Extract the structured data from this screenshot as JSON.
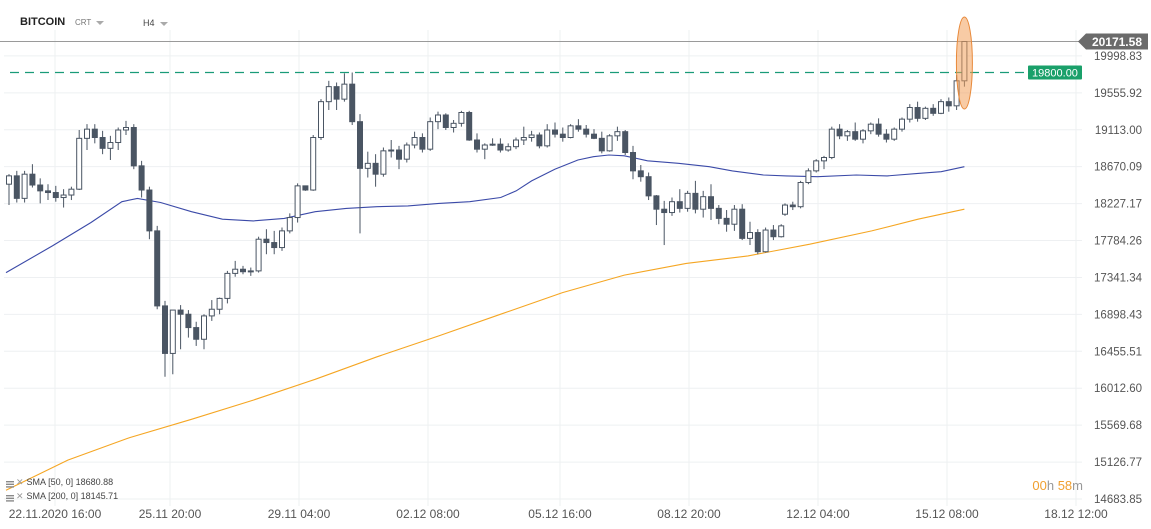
{
  "header": {
    "symbol": "BITCOIN",
    "chart_type": "CRT",
    "timeframe": "H4"
  },
  "indicators": [
    {
      "label": "SMA",
      "params": "[50, 0]",
      "value": "18680.88",
      "color": "#3b4aa8"
    },
    {
      "label": "SMA",
      "params": "[200, 0]",
      "value": "18145.71",
      "color": "#f5a623"
    }
  ],
  "countdown": {
    "hours": "00",
    "hours_unit": "h",
    "minutes": "58",
    "minutes_unit": "m"
  },
  "price_labels": {
    "current": "20171.58",
    "level": "19800.00"
  },
  "colors": {
    "candle": "#4a5563",
    "sma50": "#3b4aa8",
    "sma200": "#f5a623",
    "level_line": "#1a9b78",
    "level_badge": "#1aa06a",
    "current_badge": "#6b6b6b",
    "highlight": "#f2a15b"
  },
  "chart_data": {
    "type": "candlestick",
    "x_tick_labels": [
      "22.11.2020 16:00",
      "25.11 20:00",
      "29.11 04:00",
      "02.12 08:00",
      "05.12 16:00",
      "08.12 20:00",
      "12.12 04:00",
      "15.12 08:00",
      "18.12 12:00"
    ],
    "y_tick_labels": [
      "19998.83",
      "19555.92",
      "19113.00",
      "18670.09",
      "18227.17",
      "17784.26",
      "17341.34",
      "16898.43",
      "16455.51",
      "16012.60",
      "15569.68",
      "15126.77",
      "14683.85"
    ],
    "ylim": [
      14683.85,
      20171.58
    ],
    "horizontal_line": 19800.0,
    "current_price": 20171.58,
    "candles": [
      [
        18460,
        18580,
        18210,
        18560
      ],
      [
        18560,
        18620,
        18240,
        18290
      ],
      [
        18290,
        18620,
        18240,
        18580
      ],
      [
        18580,
        18700,
        18420,
        18450
      ],
      [
        18450,
        18530,
        18230,
        18380
      ],
      [
        18380,
        18460,
        18270,
        18360
      ],
      [
        18360,
        18440,
        18250,
        18300
      ],
      [
        18300,
        18400,
        18180,
        18330
      ],
      [
        18330,
        18430,
        18270,
        18400
      ],
      [
        18400,
        19110,
        18390,
        19010
      ],
      [
        19010,
        19180,
        18870,
        19120
      ],
      [
        19120,
        19180,
        18950,
        19020
      ],
      [
        19020,
        19100,
        18820,
        18890
      ],
      [
        18890,
        19040,
        18750,
        18960
      ],
      [
        18960,
        19140,
        18870,
        19110
      ],
      [
        19110,
        19220,
        19050,
        19140
      ],
      [
        19140,
        19180,
        18640,
        18680
      ],
      [
        18680,
        18740,
        18300,
        18390
      ],
      [
        18390,
        18430,
        17800,
        17900
      ],
      [
        17900,
        17960,
        16960,
        17000
      ],
      [
        17000,
        17060,
        16150,
        16430
      ],
      [
        16430,
        16920,
        16180,
        16950
      ],
      [
        16950,
        17010,
        16480,
        16900
      ],
      [
        16900,
        16950,
        16620,
        16740
      ],
      [
        16740,
        16810,
        16520,
        16600
      ],
      [
        16600,
        16900,
        16480,
        16880
      ],
      [
        16880,
        17070,
        16820,
        16960
      ],
      [
        16960,
        17100,
        16900,
        17090
      ],
      [
        17090,
        17420,
        17030,
        17390
      ],
      [
        17390,
        17540,
        17350,
        17440
      ],
      [
        17440,
        17480,
        17380,
        17410
      ],
      [
        17410,
        17460,
        17360,
        17420
      ],
      [
        17420,
        17830,
        17400,
        17800
      ],
      [
        17800,
        17920,
        17620,
        17760
      ],
      [
        17760,
        17900,
        17620,
        17700
      ],
      [
        17700,
        17940,
        17660,
        17900
      ],
      [
        17900,
        18110,
        17870,
        18060
      ],
      [
        18060,
        18470,
        18000,
        18440
      ],
      [
        18440,
        18440,
        18380,
        18390
      ],
      [
        18390,
        19050,
        18380,
        19020
      ],
      [
        19020,
        19480,
        18990,
        19450
      ],
      [
        19450,
        19700,
        19350,
        19630
      ],
      [
        19630,
        19680,
        19350,
        19480
      ],
      [
        19480,
        19790,
        19450,
        19660
      ],
      [
        19660,
        19800,
        19170,
        19210
      ],
      [
        19210,
        19300,
        17870,
        18650
      ],
      [
        18650,
        18850,
        18540,
        18710
      ],
      [
        18710,
        18820,
        18430,
        18580
      ],
      [
        18580,
        18900,
        18550,
        18860
      ],
      [
        18860,
        18990,
        18780,
        18870
      ],
      [
        18870,
        18920,
        18640,
        18760
      ],
      [
        18760,
        18960,
        18720,
        18930
      ],
      [
        18930,
        19090,
        18890,
        19020
      ],
      [
        19020,
        19070,
        18840,
        18880
      ],
      [
        18880,
        19260,
        18860,
        19210
      ],
      [
        19210,
        19330,
        19120,
        19290
      ],
      [
        19290,
        19310,
        19110,
        19140
      ],
      [
        19140,
        19230,
        19080,
        19190
      ],
      [
        19190,
        19340,
        19150,
        19320
      ],
      [
        19320,
        19340,
        18980,
        18990
      ],
      [
        18990,
        19070,
        18840,
        18880
      ],
      [
        18880,
        18950,
        18760,
        18930
      ],
      [
        18930,
        19010,
        18920,
        18940
      ],
      [
        18940,
        19010,
        18840,
        18870
      ],
      [
        18870,
        18950,
        18850,
        18910
      ],
      [
        18910,
        19020,
        18880,
        18990
      ],
      [
        18990,
        19150,
        18930,
        19020
      ],
      [
        19020,
        19100,
        18970,
        19050
      ],
      [
        19050,
        19080,
        18890,
        18920
      ],
      [
        18920,
        19180,
        18900,
        19110
      ],
      [
        19110,
        19200,
        19020,
        19060
      ],
      [
        19060,
        19140,
        18970,
        19020
      ],
      [
        19020,
        19180,
        19010,
        19160
      ],
      [
        19160,
        19240,
        19090,
        19120
      ],
      [
        19120,
        19170,
        19020,
        19060
      ],
      [
        19060,
        19120,
        19000,
        19010
      ],
      [
        19010,
        19090,
        18830,
        18860
      ],
      [
        18860,
        19060,
        18850,
        19040
      ],
      [
        19040,
        19150,
        18980,
        19090
      ],
      [
        19090,
        19110,
        18810,
        18840
      ],
      [
        18840,
        18920,
        18520,
        18620
      ],
      [
        18620,
        18690,
        18490,
        18550
      ],
      [
        18550,
        18600,
        18270,
        18320
      ],
      [
        18320,
        18330,
        17970,
        18160
      ],
      [
        18160,
        18260,
        17730,
        18120
      ],
      [
        18120,
        18300,
        18080,
        18250
      ],
      [
        18250,
        18400,
        18120,
        18170
      ],
      [
        18170,
        18380,
        18130,
        18350
      ],
      [
        18350,
        18500,
        18110,
        18160
      ],
      [
        18160,
        18380,
        18060,
        18310
      ],
      [
        18310,
        18460,
        18030,
        18170
      ],
      [
        18170,
        18210,
        17980,
        18050
      ],
      [
        18050,
        18150,
        17890,
        17980
      ],
      [
        17980,
        18210,
        17900,
        18160
      ],
      [
        18160,
        18220,
        17790,
        17810
      ],
      [
        17810,
        18010,
        17730,
        17880
      ],
      [
        17880,
        17920,
        17620,
        17650
      ],
      [
        17650,
        17940,
        17640,
        17910
      ],
      [
        17910,
        17970,
        17790,
        17830
      ],
      [
        17830,
        17980,
        17820,
        17960
      ]
    ],
    "candles_b": [
      [
        18100,
        18230,
        18080,
        18210
      ],
      [
        18210,
        18250,
        18150,
        18190
      ],
      [
        18190,
        18500,
        18170,
        18480
      ],
      [
        18480,
        18650,
        18460,
        18620
      ],
      [
        18620,
        18760,
        18600,
        18740
      ],
      [
        18740,
        18800,
        18640,
        18780
      ],
      [
        18780,
        19150,
        18760,
        19120
      ],
      [
        19120,
        19180,
        19000,
        19040
      ],
      [
        19040,
        19110,
        18980,
        19090
      ],
      [
        19090,
        19200,
        18980,
        19000
      ],
      [
        19000,
        19120,
        18950,
        19100
      ],
      [
        19100,
        19200,
        19060,
        19180
      ],
      [
        19180,
        19250,
        19030,
        19060
      ],
      [
        19060,
        19120,
        18960,
        19000
      ],
      [
        19000,
        19140,
        18980,
        19120
      ],
      [
        19120,
        19260,
        19090,
        19240
      ],
      [
        19240,
        19420,
        19200,
        19380
      ],
      [
        19380,
        19450,
        19210,
        19250
      ],
      [
        19250,
        19390,
        19230,
        19370
      ],
      [
        19370,
        19420,
        19280,
        19310
      ],
      [
        19310,
        19480,
        19300,
        19450
      ],
      [
        19450,
        19500,
        19330,
        19400
      ],
      [
        19400,
        19770,
        19350,
        19700
      ],
      [
        19700,
        20171.58,
        19630,
        20171.58
      ]
    ],
    "sma50": {
      "name": "SMA [50, 0]",
      "points": [
        [
          0,
          17400
        ],
        [
          6,
          17720
        ],
        [
          11,
          18000
        ],
        [
          15,
          18250
        ],
        [
          17,
          18290
        ],
        [
          20,
          18240
        ],
        [
          24,
          18130
        ],
        [
          28,
          18040
        ],
        [
          32,
          18020
        ],
        [
          36,
          18050
        ],
        [
          40,
          18130
        ],
        [
          44,
          18170
        ],
        [
          48,
          18190
        ],
        [
          52,
          18200
        ],
        [
          56,
          18230
        ],
        [
          60,
          18250
        ],
        [
          64,
          18300
        ],
        [
          66,
          18380
        ],
        [
          68,
          18500
        ],
        [
          71,
          18640
        ],
        [
          74,
          18750
        ],
        [
          76,
          18790
        ],
        [
          78,
          18810
        ],
        [
          80,
          18800
        ],
        [
          83,
          18740
        ],
        [
          87,
          18710
        ],
        [
          91,
          18670
        ],
        [
          94,
          18620
        ],
        [
          98,
          18570
        ],
        [
          101,
          18560
        ],
        [
          105,
          18550
        ],
        [
          110,
          18570
        ],
        [
          114,
          18560
        ],
        [
          118,
          18590
        ],
        [
          121,
          18610
        ],
        [
          124,
          18670
        ]
      ]
    },
    "sma200": {
      "name": "SMA [200, 0]",
      "points": [
        [
          0,
          14790
        ],
        [
          8,
          15150
        ],
        [
          16,
          15420
        ],
        [
          24,
          15640
        ],
        [
          32,
          15870
        ],
        [
          40,
          16120
        ],
        [
          48,
          16390
        ],
        [
          56,
          16640
        ],
        [
          64,
          16900
        ],
        [
          72,
          17160
        ],
        [
          80,
          17370
        ],
        [
          88,
          17510
        ],
        [
          96,
          17600
        ],
        [
          104,
          17740
        ],
        [
          112,
          17900
        ],
        [
          118,
          18040
        ],
        [
          124,
          18160
        ]
      ]
    }
  }
}
